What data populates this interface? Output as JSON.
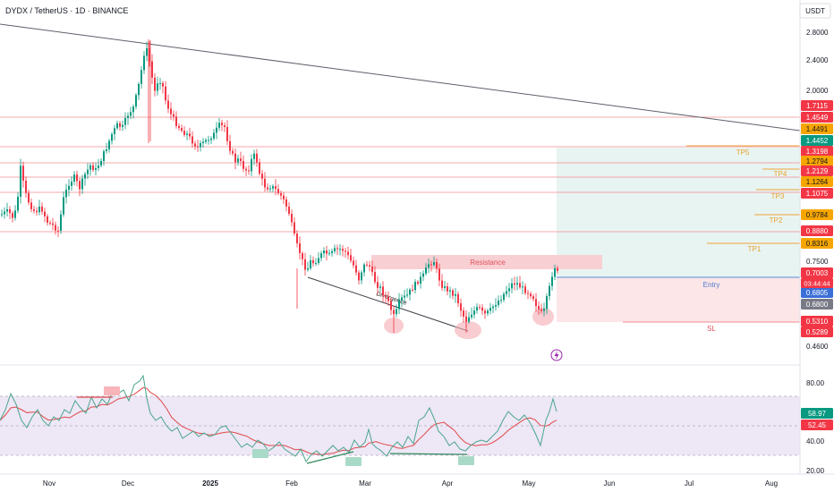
{
  "header": {
    "symbol_line": "DYDX / TetherUS · 1D · BINANCE",
    "currency": "USDT",
    "countdown": "03:44:44"
  },
  "chart_data": {
    "type": "candlestick",
    "title": "DYDX / TetherUS · 1D · BINANCE",
    "x_ticks": [
      "Nov",
      "Dec",
      "2025",
      "Feb",
      "Mar",
      "Apr",
      "May",
      "Jun",
      "Jul",
      "Aug"
    ],
    "y_scale": "log",
    "y_ticks": [
      "2.8000",
      "2.4000",
      "2.0000",
      "0.7500",
      "0.4600"
    ],
    "price_labels": [
      {
        "value": "1.7115",
        "color": "#f23645"
      },
      {
        "value": "1.4549",
        "color": "#f23645"
      },
      {
        "value": "1.4491",
        "color": "#f7a600"
      },
      {
        "value": "1.4452",
        "color": "#089981"
      },
      {
        "value": "1.3198",
        "color": "#f23645"
      },
      {
        "value": "1.2794",
        "color": "#f7a600"
      },
      {
        "value": "1.2129",
        "color": "#f23645"
      },
      {
        "value": "1.1264",
        "color": "#f7a600"
      },
      {
        "value": "1.1075",
        "color": "#f23645"
      },
      {
        "value": "0.9784",
        "color": "#f7a600"
      },
      {
        "value": "0.8880",
        "color": "#f23645"
      },
      {
        "value": "0.8316",
        "color": "#f7a600"
      },
      {
        "value": "0.7003",
        "color": "#f23645"
      },
      {
        "value": "0.6805",
        "color": "#3b6fd8"
      },
      {
        "value": "0.6800",
        "color": "#787b86"
      },
      {
        "value": "0.5310",
        "color": "#f23645"
      },
      {
        "value": "0.5289",
        "color": "#f23645"
      }
    ],
    "annotations": {
      "targets": [
        "TP5",
        "TP4",
        "TP3",
        "TP2",
        "TP1"
      ],
      "entry": "Entry",
      "stop": "SL",
      "resistance": "Resistance",
      "divergence": "Divergence"
    },
    "rsi": {
      "y_ticks": [
        "80.00",
        "40.00",
        "20.00"
      ],
      "rsi_value": "58.97",
      "ma_value": "52.45"
    },
    "colors": {
      "up": "#089981",
      "down": "#f23645",
      "resistance_fill": "#f7cdd1",
      "target_zone": "#e7f3f0",
      "stop_zone": "#fde5e7",
      "rsi_band": "#ede7f6",
      "rsi_line": "#3a9e84",
      "rsi_ma": "#e04848"
    }
  }
}
